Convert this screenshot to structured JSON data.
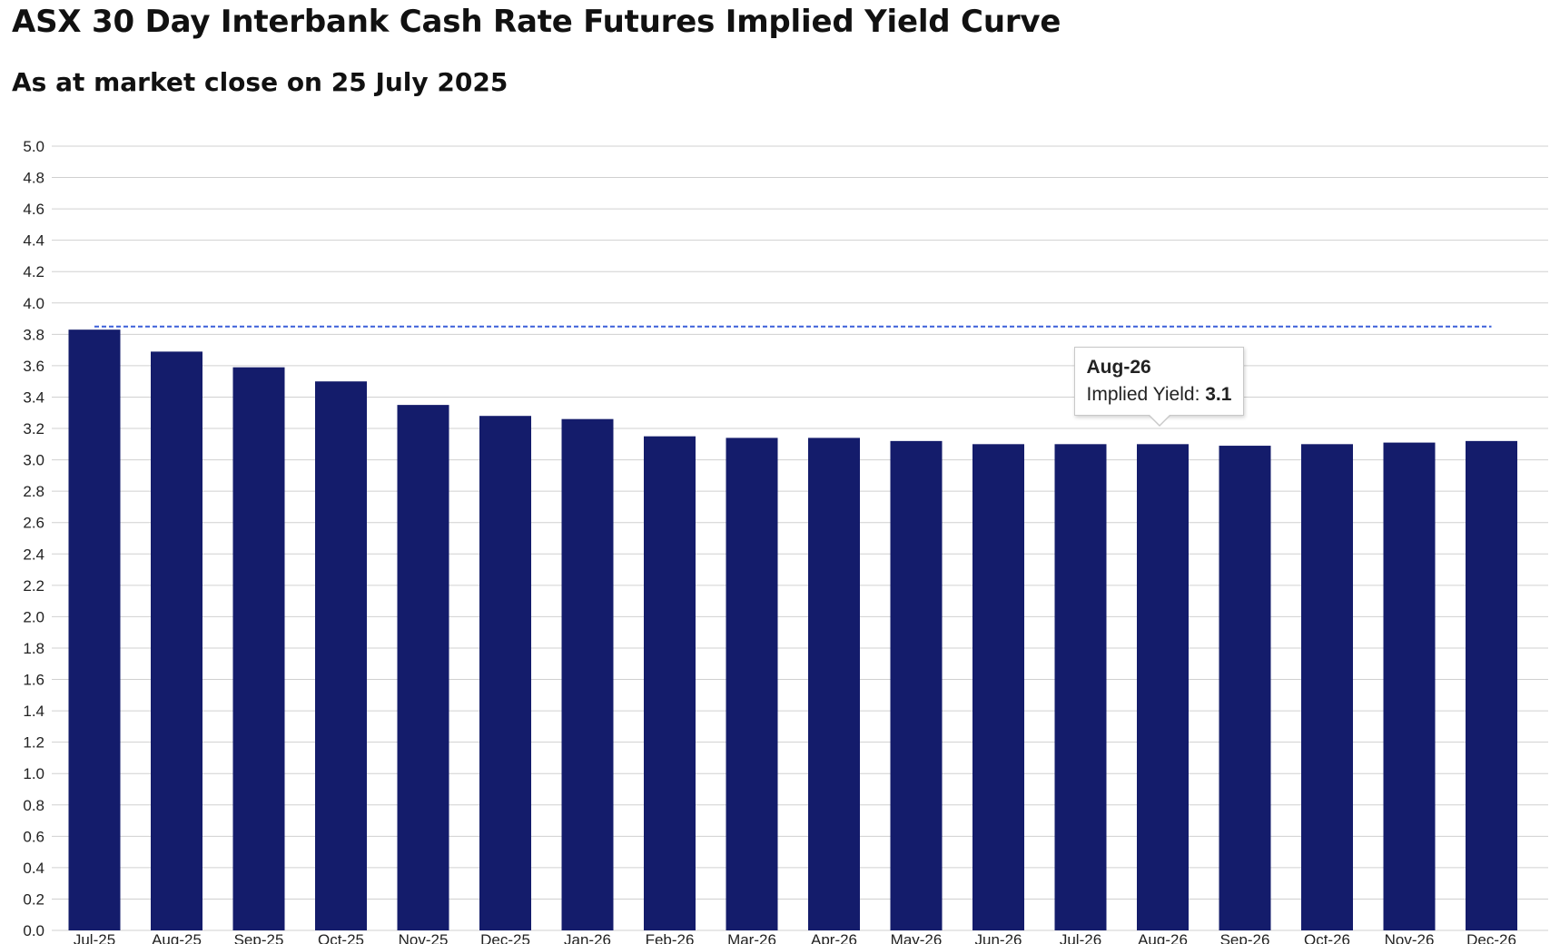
{
  "chart_data": {
    "type": "bar",
    "title": "ASX 30 Day Interbank Cash Rate Futures Implied Yield Curve",
    "subtitle": "As at market close on 25 July 2025",
    "categories": [
      "Jul-25",
      "Aug-25",
      "Sep-25",
      "Oct-25",
      "Nov-25",
      "Dec-25",
      "Jan-26",
      "Feb-26",
      "Mar-26",
      "Apr-26",
      "May-26",
      "Jun-26",
      "Jul-26",
      "Aug-26",
      "Sep-26",
      "Oct-26",
      "Nov-26",
      "Dec-26"
    ],
    "values": [
      3.83,
      3.69,
      3.59,
      3.5,
      3.35,
      3.28,
      3.26,
      3.15,
      3.14,
      3.14,
      3.12,
      3.1,
      3.1,
      3.1,
      3.09,
      3.1,
      3.11,
      3.12
    ],
    "reference_line": {
      "value": 3.85,
      "style": "dashed",
      "color": "#3b5fd9"
    },
    "ylim": [
      0,
      5.0
    ],
    "ytick_step": 0.2,
    "grid": true,
    "bar_color": "#141c6b",
    "grid_color": "#d0d0d0",
    "tooltip": {
      "category": "Aug-26",
      "label": "Implied Yield:",
      "value": "3.1"
    }
  }
}
